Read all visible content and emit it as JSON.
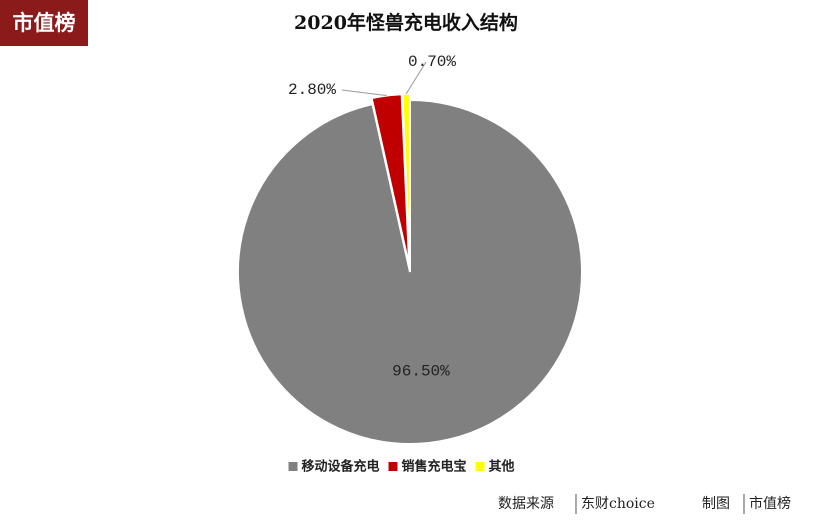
{
  "logo": "市值榜",
  "footer": {
    "source_label": "数据来源",
    "source": "东财choice",
    "maker_label": "制图",
    "maker": "市值榜"
  },
  "chart_data": {
    "type": "pie",
    "title": "2020年怪兽充电收入结构",
    "categories": [
      "移动设备充电",
      "销售充电宝",
      "其他"
    ],
    "values": [
      96.5,
      2.8,
      0.7
    ],
    "value_labels": [
      "96.50%",
      "2.80%",
      "0.70%"
    ],
    "colors": [
      "#808080",
      "#c00000",
      "#ffff00"
    ],
    "legend": "bottom"
  }
}
